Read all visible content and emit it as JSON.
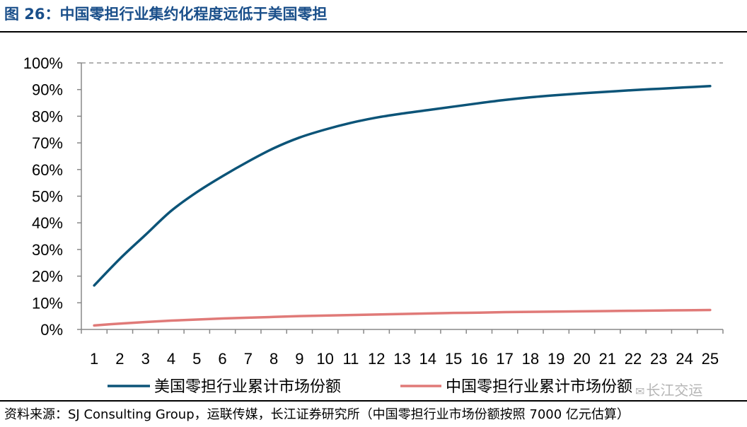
{
  "header": {
    "title": "图 26：中国零担行业集约化程度远低于美国零担"
  },
  "footer": {
    "source": "资料来源：SJ Consulting Group，运联传媒，长江证券研究所（中国零担行业市场份额按照 7000 亿元估算）"
  },
  "watermark": {
    "text": "长江交运",
    "icon": "wechat-icon"
  },
  "colors": {
    "us_series": "#0c5478",
    "cn_series": "#e07a78",
    "axis": "#888888",
    "grid": "#999999"
  },
  "chart_data": {
    "type": "line",
    "title": "",
    "xlabel": "",
    "ylabel": "",
    "ylim": [
      0,
      1
    ],
    "yticks": [
      "0%",
      "10%",
      "20%",
      "30%",
      "40%",
      "50%",
      "60%",
      "70%",
      "80%",
      "90%",
      "100%"
    ],
    "x": [
      "1",
      "2",
      "3",
      "4",
      "5",
      "6",
      "7",
      "8",
      "9",
      "10",
      "11",
      "12",
      "13",
      "14",
      "15",
      "16",
      "17",
      "18",
      "19",
      "20",
      "21",
      "22",
      "23",
      "24",
      "25"
    ],
    "gridline_at": "100%",
    "legend_position": "bottom",
    "series": [
      {
        "name": "美国零担行业累计市场份额",
        "values": [
          0.165,
          0.265,
          0.355,
          0.445,
          0.515,
          0.575,
          0.63,
          0.68,
          0.72,
          0.75,
          0.775,
          0.795,
          0.81,
          0.823,
          0.836,
          0.849,
          0.861,
          0.871,
          0.879,
          0.886,
          0.892,
          0.898,
          0.903,
          0.908,
          0.913
        ]
      },
      {
        "name": "中国零担行业累计市场份额",
        "values": [
          0.015,
          0.022,
          0.028,
          0.033,
          0.037,
          0.041,
          0.044,
          0.047,
          0.05,
          0.052,
          0.054,
          0.056,
          0.058,
          0.06,
          0.062,
          0.063,
          0.065,
          0.066,
          0.067,
          0.068,
          0.069,
          0.07,
          0.071,
          0.072,
          0.073
        ]
      }
    ]
  }
}
